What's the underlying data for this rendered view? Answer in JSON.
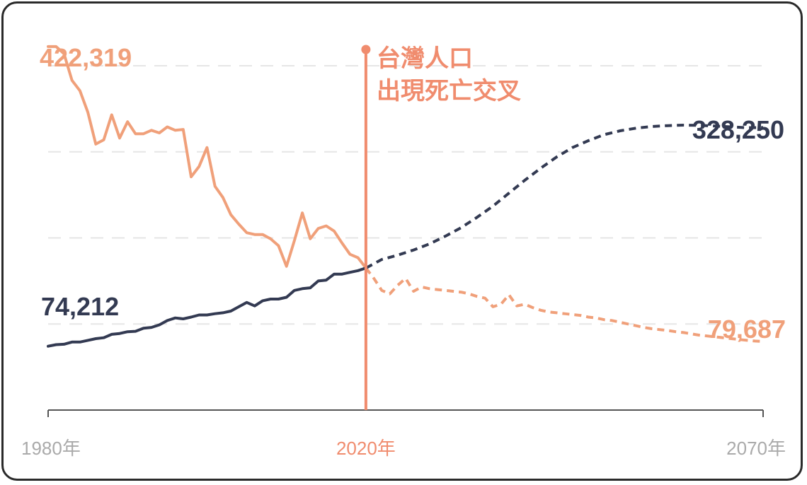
{
  "chart_data": {
    "type": "line",
    "title": "",
    "xlabel": "",
    "ylabel": "",
    "grid": true,
    "xlim": [
      1980,
      2070
    ],
    "ylim": [
      0,
      460000
    ],
    "x_ticks": [
      "1980年",
      "2020年",
      "2070年"
    ],
    "marker": {
      "x": 2020,
      "label_lines": [
        "台灣人口",
        "出現死亡交叉"
      ]
    },
    "colors": {
      "births": "#f0a07a",
      "deaths": "#333a52",
      "marker": "#f08c6e",
      "grid": "#e6e6e6",
      "axis": "#555555",
      "tick_text": "#aaaaaa"
    },
    "series": [
      {
        "id": "births",
        "start_label": "422,319",
        "end_label": "79,687",
        "observed": [
          [
            1980,
            422319
          ],
          [
            1981,
            422319
          ],
          [
            1982,
            414000
          ],
          [
            1983,
            383000
          ],
          [
            1984,
            371000
          ],
          [
            1985,
            346000
          ],
          [
            1986,
            309000
          ],
          [
            1987,
            314000
          ],
          [
            1988,
            343000
          ],
          [
            1989,
            316000
          ],
          [
            1990,
            335000
          ],
          [
            1991,
            321000
          ],
          [
            1992,
            321000
          ],
          [
            1993,
            325000
          ],
          [
            1994,
            322000
          ],
          [
            1995,
            329000
          ],
          [
            1996,
            325000
          ],
          [
            1997,
            326000
          ],
          [
            1998,
            271000
          ],
          [
            1999,
            283000
          ],
          [
            2000,
            305000
          ],
          [
            2001,
            260000
          ],
          [
            2002,
            247000
          ],
          [
            2003,
            227000
          ],
          [
            2004,
            216000
          ],
          [
            2005,
            206000
          ],
          [
            2006,
            204000
          ],
          [
            2007,
            204000
          ],
          [
            2008,
            199000
          ],
          [
            2009,
            191000
          ],
          [
            2010,
            167000
          ],
          [
            2011,
            197000
          ],
          [
            2012,
            229000
          ],
          [
            2013,
            199000
          ],
          [
            2014,
            211000
          ],
          [
            2015,
            214000
          ],
          [
            2016,
            208000
          ],
          [
            2017,
            194000
          ],
          [
            2018,
            181000
          ],
          [
            2019,
            177000
          ],
          [
            2020,
            165000
          ]
        ],
        "projected": [
          [
            2020,
            165000
          ],
          [
            2021,
            153000
          ],
          [
            2022,
            139000
          ],
          [
            2023,
            135000
          ],
          [
            2024,
            145000
          ],
          [
            2025,
            153000
          ],
          [
            2026,
            138000
          ],
          [
            2027,
            143000
          ],
          [
            2028,
            141000
          ],
          [
            2029,
            140000
          ],
          [
            2030,
            139000
          ],
          [
            2031,
            138000
          ],
          [
            2032,
            137000
          ],
          [
            2033,
            135000
          ],
          [
            2034,
            132000
          ],
          [
            2035,
            130000
          ],
          [
            2036,
            120000
          ],
          [
            2037,
            123000
          ],
          [
            2038,
            134000
          ],
          [
            2039,
            121000
          ],
          [
            2040,
            123000
          ],
          [
            2041,
            119000
          ],
          [
            2042,
            116000
          ],
          [
            2043,
            114000
          ],
          [
            2044,
            113000
          ],
          [
            2045,
            112000
          ],
          [
            2046,
            111000
          ],
          [
            2047,
            110000
          ],
          [
            2048,
            108000
          ],
          [
            2049,
            107000
          ],
          [
            2050,
            105000
          ],
          [
            2051,
            104000
          ],
          [
            2052,
            102000
          ],
          [
            2053,
            100000
          ],
          [
            2054,
            98000
          ],
          [
            2055,
            96000
          ],
          [
            2056,
            94500
          ],
          [
            2057,
            93500
          ],
          [
            2058,
            92500
          ],
          [
            2059,
            91000
          ],
          [
            2060,
            90000
          ],
          [
            2061,
            88500
          ],
          [
            2062,
            87000
          ],
          [
            2063,
            86000
          ],
          [
            2064,
            85000
          ],
          [
            2065,
            84000
          ],
          [
            2066,
            83000
          ],
          [
            2067,
            82000
          ],
          [
            2068,
            81000
          ],
          [
            2069,
            80200
          ],
          [
            2070,
            79687
          ]
        ]
      },
      {
        "id": "deaths",
        "start_label": "74,212",
        "end_label": "328,250",
        "observed": [
          [
            1980,
            74212
          ],
          [
            1981,
            76000
          ],
          [
            1982,
            76500
          ],
          [
            1983,
            79000
          ],
          [
            1984,
            79000
          ],
          [
            1985,
            81000
          ],
          [
            1986,
            83000
          ],
          [
            1987,
            84000
          ],
          [
            1988,
            88000
          ],
          [
            1989,
            89000
          ],
          [
            1990,
            91000
          ],
          [
            1991,
            91500
          ],
          [
            1992,
            95000
          ],
          [
            1993,
            96000
          ],
          [
            1994,
            99000
          ],
          [
            1995,
            104000
          ],
          [
            1996,
            107000
          ],
          [
            1997,
            106000
          ],
          [
            1998,
            108000
          ],
          [
            1999,
            110500
          ],
          [
            2000,
            110500
          ],
          [
            2001,
            112000
          ],
          [
            2002,
            113000
          ],
          [
            2003,
            115000
          ],
          [
            2004,
            120000
          ],
          [
            2005,
            125000
          ],
          [
            2006,
            121000
          ],
          [
            2007,
            127000
          ],
          [
            2008,
            129000
          ],
          [
            2009,
            129000
          ],
          [
            2010,
            131000
          ],
          [
            2011,
            139000
          ],
          [
            2012,
            141000
          ],
          [
            2013,
            142000
          ],
          [
            2014,
            150000
          ],
          [
            2015,
            151000
          ],
          [
            2016,
            158000
          ],
          [
            2017,
            158000
          ],
          [
            2018,
            160000
          ],
          [
            2019,
            162000
          ],
          [
            2020,
            165000
          ]
        ],
        "projected": [
          [
            2020,
            165000
          ],
          [
            2022,
            175000
          ],
          [
            2024,
            180000
          ],
          [
            2026,
            186000
          ],
          [
            2028,
            193000
          ],
          [
            2030,
            202000
          ],
          [
            2032,
            212000
          ],
          [
            2034,
            224000
          ],
          [
            2036,
            237000
          ],
          [
            2038,
            252000
          ],
          [
            2040,
            267000
          ],
          [
            2042,
            281000
          ],
          [
            2044,
            294000
          ],
          [
            2046,
            305000
          ],
          [
            2048,
            313000
          ],
          [
            2050,
            320000
          ],
          [
            2052,
            324500
          ],
          [
            2054,
            327500
          ],
          [
            2056,
            329500
          ],
          [
            2058,
            330500
          ],
          [
            2060,
            331000
          ],
          [
            2062,
            330800
          ],
          [
            2064,
            330000
          ],
          [
            2066,
            329000
          ],
          [
            2068,
            328000
          ],
          [
            2070,
            328250
          ]
        ]
      }
    ]
  }
}
